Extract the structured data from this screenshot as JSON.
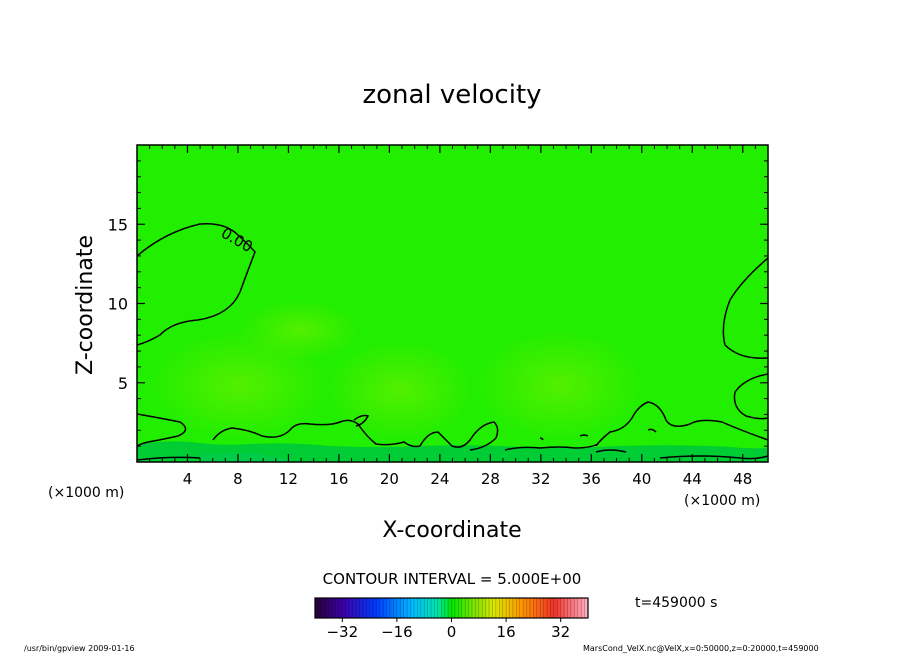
{
  "chart_data": {
    "type": "heatmap",
    "title": "zonal velocity",
    "xlabel": "X-coordinate",
    "ylabel": "Z-coordinate",
    "x_unit": "(×1000 m)",
    "y_unit": "(×1000 m)",
    "xlim": [
      0,
      50
    ],
    "ylim": [
      0,
      20
    ],
    "x_ticks": [
      4,
      8,
      12,
      16,
      20,
      24,
      28,
      32,
      36,
      40,
      44,
      48
    ],
    "y_ticks": [
      5,
      10,
      15
    ],
    "contour_label": "0.00",
    "contour_interval_text": "CONTOUR INTERVAL = 5.000E+00",
    "time_text": "t=459000 s",
    "colorbar": {
      "range": [
        -40,
        40
      ],
      "ticks": [
        -32,
        -16,
        0,
        16,
        32
      ]
    },
    "footer_left": "/usr/bin/gpview   2009-01-16",
    "footer_right": "MarsCond_VelX.nc@VelX,x=0:50000,z=0:20000,t=459000"
  },
  "colors": {
    "field": "#22ee00",
    "field_light": "#5ef000",
    "field_dark": "#00cc33",
    "contour": "#000000"
  }
}
